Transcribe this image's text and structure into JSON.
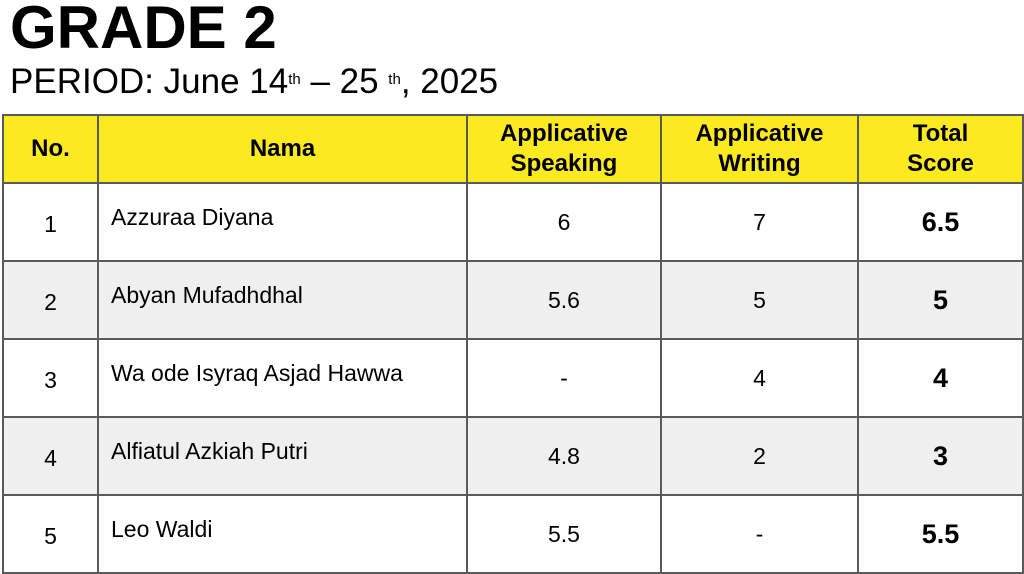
{
  "header": {
    "title": "GRADE 2",
    "period_prefix": "PERIOD: June 14",
    "sup1": "th",
    "period_mid": " – 25 ",
    "sup2": "th",
    "period_suffix": ", 2025"
  },
  "table": {
    "columns": [
      "No.",
      "Nama",
      "Applicative Speaking",
      "Applicative Writing",
      "Total Score"
    ],
    "rows": [
      {
        "no": "1",
        "name": "Azzuraa Diyana",
        "speaking": "6",
        "writing": "7",
        "total": "6.5"
      },
      {
        "no": "2",
        "name": "Abyan Mufadhdhal",
        "speaking": "5.6",
        "writing": "5",
        "total": "5"
      },
      {
        "no": "3",
        "name": "Wa ode Isyraq Asjad Hawwa",
        "speaking": "-",
        "writing": "4",
        "total": "4"
      },
      {
        "no": "4",
        "name": "Alfiatul Azkiah Putri",
        "speaking": "4.8",
        "writing": "2",
        "total": "3"
      },
      {
        "no": "5",
        "name": "Leo Waldi",
        "speaking": "5.5",
        "writing": "-",
        "total": "5.5"
      }
    ]
  },
  "colors": {
    "header_bg": "#fcea20",
    "alt_row_bg": "#efefef",
    "border": "#5a5a5a"
  }
}
